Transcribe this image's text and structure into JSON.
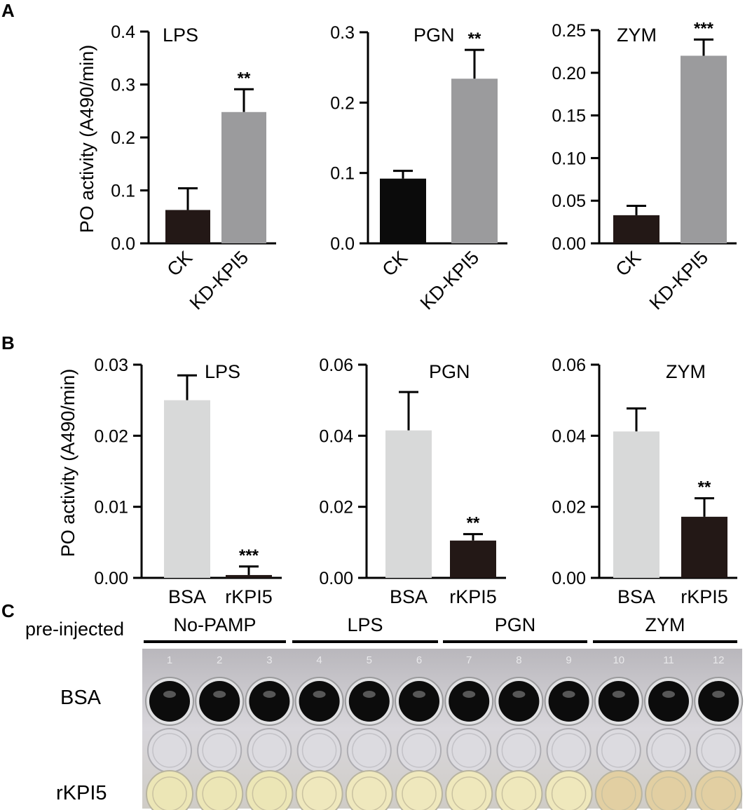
{
  "panels": {
    "A": "A",
    "B": "B",
    "C": "C"
  },
  "ylabel_A": "PO activity (A490/min)",
  "ylabel_B": "PO activity (A490/min)",
  "colors": {
    "ck": "#231816",
    "kd": "#9b9b9d",
    "bsa": "#d8d9d9",
    "rkpi5": "#231816"
  },
  "chart_data": [
    {
      "type": "bar",
      "panel": "A",
      "title": "LPS",
      "categories": [
        "CK",
        "KD-KPI5"
      ],
      "values": [
        0.063,
        0.248
      ],
      "errors": [
        0.041,
        0.043
      ],
      "significance": [
        "",
        "**"
      ],
      "ylim": [
        0,
        0.4
      ],
      "yticks": [
        "0.0",
        "0.1",
        "0.2",
        "0.3",
        "0.4"
      ],
      "bar_colors": [
        "#231816",
        "#9b9b9d"
      ],
      "cat_rotated": true
    },
    {
      "type": "bar",
      "panel": "A",
      "title": "PGN",
      "categories": [
        "CK",
        "KD-KPI5"
      ],
      "values": [
        0.092,
        0.234
      ],
      "errors": [
        0.011,
        0.041
      ],
      "significance": [
        "",
        "**"
      ],
      "ylim": [
        0,
        0.3
      ],
      "yticks": [
        "0.0",
        "0.1",
        "0.2",
        "0.3"
      ],
      "bar_colors": [
        "#0b0b0b",
        "#9b9b9d"
      ],
      "cat_rotated": true
    },
    {
      "type": "bar",
      "panel": "A",
      "title": "ZYM",
      "categories": [
        "CK",
        "KD-KPI5"
      ],
      "values": [
        0.033,
        0.22
      ],
      "errors": [
        0.011,
        0.019
      ],
      "significance": [
        "",
        "***"
      ],
      "ylim": [
        0,
        0.25
      ],
      "yticks": [
        "0.00",
        "0.05",
        "0.10",
        "0.15",
        "0.20",
        "0.25"
      ],
      "bar_colors": [
        "#231816",
        "#9b9b9d"
      ],
      "cat_rotated": true
    },
    {
      "type": "bar",
      "panel": "B",
      "title": "LPS",
      "categories": [
        "BSA",
        "rKPI5"
      ],
      "values": [
        0.025,
        0.0004
      ],
      "errors": [
        0.0035,
        0.0012
      ],
      "significance": [
        "",
        "***"
      ],
      "ylim": [
        0,
        0.03
      ],
      "yticks": [
        "0.00",
        "0.01",
        "0.02",
        "0.03"
      ],
      "bar_colors": [
        "#d8d9d9",
        "#231816"
      ],
      "cat_rotated": false
    },
    {
      "type": "bar",
      "panel": "B",
      "title": "PGN",
      "categories": [
        "BSA",
        "rKPI5"
      ],
      "values": [
        0.0415,
        0.0105
      ],
      "errors": [
        0.0108,
        0.0018
      ],
      "significance": [
        "",
        "**"
      ],
      "ylim": [
        0,
        0.06
      ],
      "yticks": [
        "0.00",
        "0.02",
        "0.04",
        "0.06"
      ],
      "bar_colors": [
        "#d8d9d9",
        "#231816"
      ],
      "cat_rotated": false
    },
    {
      "type": "bar",
      "panel": "B",
      "title": "ZYM",
      "categories": [
        "BSA",
        "rKPI5"
      ],
      "values": [
        0.0412,
        0.0172
      ],
      "errors": [
        0.0065,
        0.0052
      ],
      "significance": [
        "",
        "**"
      ],
      "ylim": [
        0,
        0.06
      ],
      "yticks": [
        "0.00",
        "0.02",
        "0.04",
        "0.06"
      ],
      "bar_colors": [
        "#d8d9d9",
        "#231816"
      ],
      "cat_rotated": false
    }
  ],
  "plate": {
    "pre_label": "pre-injected",
    "groups": [
      "No-PAMP",
      "LPS",
      "PGN",
      "ZYM"
    ],
    "well_numbers": [
      "1",
      "2",
      "3",
      "4",
      "5",
      "6",
      "7",
      "8",
      "9",
      "10",
      "11",
      "12"
    ],
    "row_labels": [
      "BSA",
      "rKPI5"
    ],
    "row_outcomes": [
      "black",
      "clear"
    ],
    "rkpi5_tints": [
      "#ece6b6",
      "#ece6b6",
      "#ece6b6",
      "#efe8bd",
      "#efe8bd",
      "#efe8bd",
      "#efe8bc",
      "#efe8bc",
      "#efe8bc",
      "#e2cfa2",
      "#e2cfa2",
      "#e2cfa2"
    ]
  }
}
